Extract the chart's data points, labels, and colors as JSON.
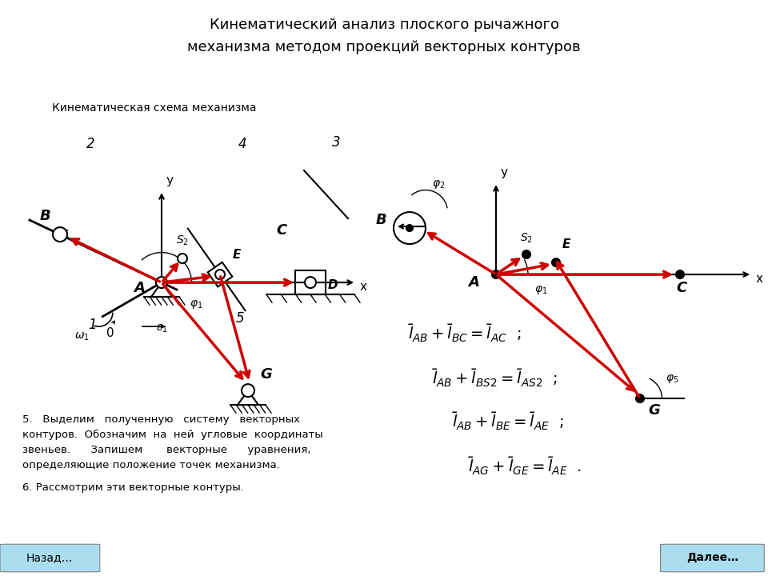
{
  "title": "Кинематический анализ плоского рычажного\nмеханизма методом проекций векторных контуров",
  "subtitle": "Кинематическая схема механизма",
  "bg_title": "#c8c8c8",
  "bg_main": "#ffffff",
  "bg_button": "#aaddee",
  "button_back": "Назад…",
  "button_next": "Далее…",
  "red": "#cc0000",
  "black": "#000000"
}
